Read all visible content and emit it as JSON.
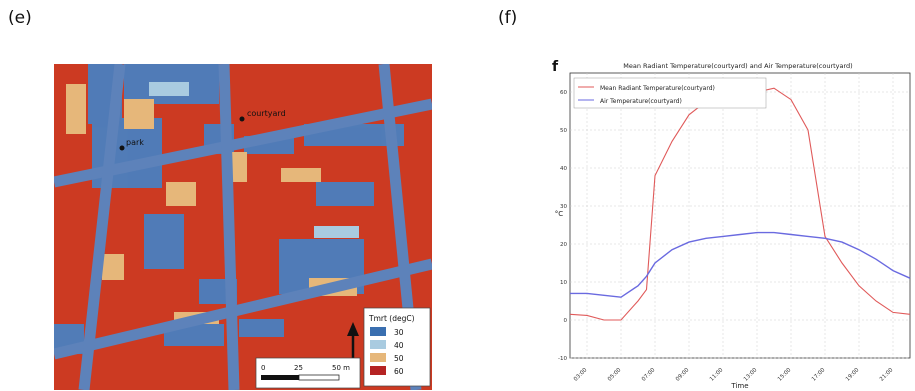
{
  "panels": {
    "left_label": "(e)",
    "right_label": "(f)"
  },
  "map": {
    "point_labels": [
      "courtyard",
      "park"
    ],
    "legend_title": "Tmrt (degC)",
    "legend_items": [
      {
        "label": "30",
        "color": "#3a6fb0"
      },
      {
        "label": "40",
        "color": "#a9cbe0"
      },
      {
        "label": "50",
        "color": "#e6b77a"
      },
      {
        "label": "60",
        "color": "#b52323"
      }
    ],
    "scale_labels": [
      "0",
      "25",
      "50 m"
    ],
    "north_icon": "north-arrow-icon",
    "colors": {
      "hot": "#cc3a22",
      "cool": "#4a7fc0",
      "road": "#5d82ba"
    }
  },
  "chart_data": {
    "type": "line",
    "panel_letter": "f",
    "title": "Mean Radiant Temperature(courtyard) and Air Temperature(courtyard)",
    "xlabel": "Time",
    "ylabel": "°C",
    "categories": [
      "03:00",
      "05:00",
      "07:00",
      "09:00",
      "11:00",
      "13:00",
      "15:00",
      "17:00",
      "19:00",
      "21:00"
    ],
    "x": [
      2.0,
      3.0,
      4.0,
      5.0,
      6.0,
      6.5,
      7.0,
      8.0,
      9.0,
      10.0,
      11.0,
      12.0,
      13.0,
      14.0,
      15.0,
      16.0,
      17.0,
      18.0,
      19.0,
      20.0,
      21.0,
      22.0
    ],
    "ylim": [
      -10,
      65
    ],
    "yticks": [
      -10,
      0,
      10,
      20,
      30,
      40,
      50,
      60
    ],
    "grid": true,
    "legend_position": "top-left",
    "series": [
      {
        "name": "Mean Radiant Temperature(courtyard)",
        "color": "#e05a5a",
        "values": [
          1.5,
          1.2,
          0.0,
          0.0,
          5.0,
          8.0,
          38,
          47,
          54,
          57.5,
          56.5,
          56.5,
          60,
          61,
          58,
          50,
          22,
          15,
          9,
          5,
          2,
          1.5
        ]
      },
      {
        "name": "Air Temperature(courtyard)",
        "color": "#6a6ae0",
        "values": [
          7.0,
          7.0,
          6.5,
          6.0,
          9.0,
          11.5,
          15,
          18.5,
          20.5,
          21.5,
          22,
          22.5,
          23,
          23,
          22.5,
          22,
          21.5,
          20.5,
          18.5,
          16,
          13,
          11
        ]
      }
    ]
  }
}
